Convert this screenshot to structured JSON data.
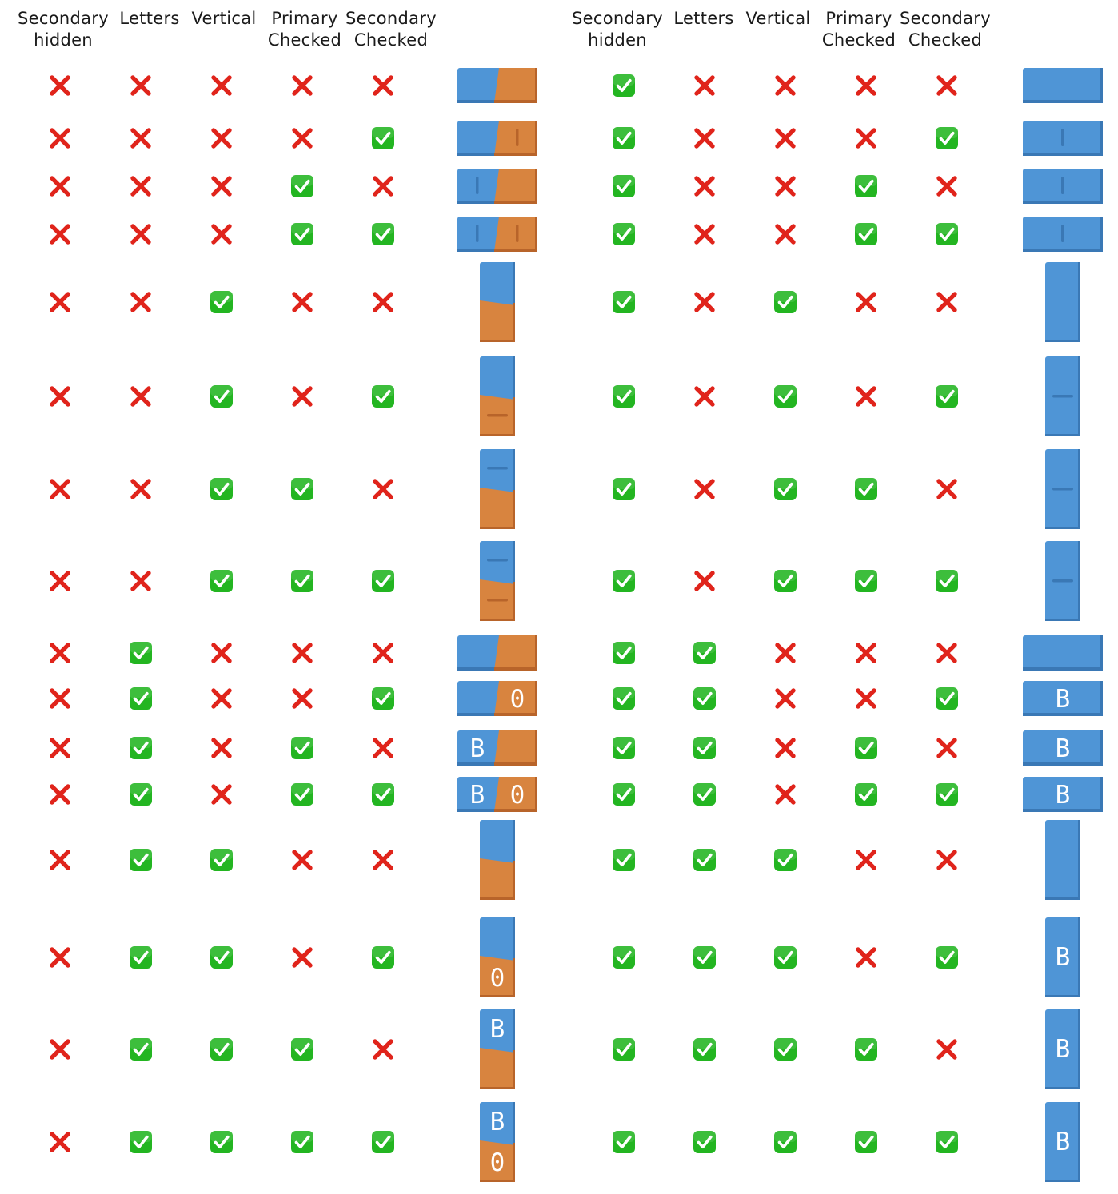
{
  "headers": {
    "secondary_hidden": "Secondary\nhidden",
    "letters": "Letters",
    "vertical": "Vertical",
    "primary_checked": "Primary\nChecked",
    "secondary_checked": "Secondary\nChecked"
  },
  "icons": {
    "yes": "check-mark-button-icon",
    "no": "cross-mark-icon"
  },
  "colors": {
    "primary": "#4f95d6",
    "primary_dark": "#3a78b5",
    "secondary": "#d8843f",
    "secondary_dark": "#b8642a",
    "check_bg": "#23b521",
    "cross": "#e0241b"
  },
  "labels": {
    "primary_letter": "B",
    "secondary_letter": "0"
  },
  "combinations": [
    {
      "secondary_hidden": false,
      "letters": false,
      "vertical": false,
      "primary_checked": false,
      "secondary_checked": false
    },
    {
      "secondary_hidden": false,
      "letters": false,
      "vertical": false,
      "primary_checked": false,
      "secondary_checked": true
    },
    {
      "secondary_hidden": false,
      "letters": false,
      "vertical": false,
      "primary_checked": true,
      "secondary_checked": false
    },
    {
      "secondary_hidden": false,
      "letters": false,
      "vertical": false,
      "primary_checked": true,
      "secondary_checked": true
    },
    {
      "secondary_hidden": false,
      "letters": false,
      "vertical": true,
      "primary_checked": false,
      "secondary_checked": false
    },
    {
      "secondary_hidden": false,
      "letters": false,
      "vertical": true,
      "primary_checked": false,
      "secondary_checked": true
    },
    {
      "secondary_hidden": false,
      "letters": false,
      "vertical": true,
      "primary_checked": true,
      "secondary_checked": false
    },
    {
      "secondary_hidden": false,
      "letters": false,
      "vertical": true,
      "primary_checked": true,
      "secondary_checked": true
    },
    {
      "secondary_hidden": false,
      "letters": true,
      "vertical": false,
      "primary_checked": false,
      "secondary_checked": false
    },
    {
      "secondary_hidden": false,
      "letters": true,
      "vertical": false,
      "primary_checked": false,
      "secondary_checked": true
    },
    {
      "secondary_hidden": false,
      "letters": true,
      "vertical": false,
      "primary_checked": true,
      "secondary_checked": false
    },
    {
      "secondary_hidden": false,
      "letters": true,
      "vertical": false,
      "primary_checked": true,
      "secondary_checked": true
    },
    {
      "secondary_hidden": false,
      "letters": true,
      "vertical": true,
      "primary_checked": false,
      "secondary_checked": false
    },
    {
      "secondary_hidden": false,
      "letters": true,
      "vertical": true,
      "primary_checked": false,
      "secondary_checked": true
    },
    {
      "secondary_hidden": false,
      "letters": true,
      "vertical": true,
      "primary_checked": true,
      "secondary_checked": false
    },
    {
      "secondary_hidden": false,
      "letters": true,
      "vertical": true,
      "primary_checked": true,
      "secondary_checked": true
    },
    {
      "secondary_hidden": true,
      "letters": false,
      "vertical": false,
      "primary_checked": false,
      "secondary_checked": false
    },
    {
      "secondary_hidden": true,
      "letters": false,
      "vertical": false,
      "primary_checked": false,
      "secondary_checked": true
    },
    {
      "secondary_hidden": true,
      "letters": false,
      "vertical": false,
      "primary_checked": true,
      "secondary_checked": false
    },
    {
      "secondary_hidden": true,
      "letters": false,
      "vertical": false,
      "primary_checked": true,
      "secondary_checked": true
    },
    {
      "secondary_hidden": true,
      "letters": false,
      "vertical": true,
      "primary_checked": false,
      "secondary_checked": false
    },
    {
      "secondary_hidden": true,
      "letters": false,
      "vertical": true,
      "primary_checked": false,
      "secondary_checked": true
    },
    {
      "secondary_hidden": true,
      "letters": false,
      "vertical": true,
      "primary_checked": true,
      "secondary_checked": false
    },
    {
      "secondary_hidden": true,
      "letters": false,
      "vertical": true,
      "primary_checked": true,
      "secondary_checked": true
    },
    {
      "secondary_hidden": true,
      "letters": true,
      "vertical": false,
      "primary_checked": false,
      "secondary_checked": false
    },
    {
      "secondary_hidden": true,
      "letters": true,
      "vertical": false,
      "primary_checked": false,
      "secondary_checked": true
    },
    {
      "secondary_hidden": true,
      "letters": true,
      "vertical": false,
      "primary_checked": true,
      "secondary_checked": false
    },
    {
      "secondary_hidden": true,
      "letters": true,
      "vertical": false,
      "primary_checked": true,
      "secondary_checked": true
    },
    {
      "secondary_hidden": true,
      "letters": true,
      "vertical": true,
      "primary_checked": false,
      "secondary_checked": false
    },
    {
      "secondary_hidden": true,
      "letters": true,
      "vertical": true,
      "primary_checked": false,
      "secondary_checked": true
    },
    {
      "secondary_hidden": true,
      "letters": true,
      "vertical": true,
      "primary_checked": true,
      "secondary_checked": false
    },
    {
      "secondary_hidden": true,
      "letters": true,
      "vertical": true,
      "primary_checked": true,
      "secondary_checked": true
    }
  ]
}
